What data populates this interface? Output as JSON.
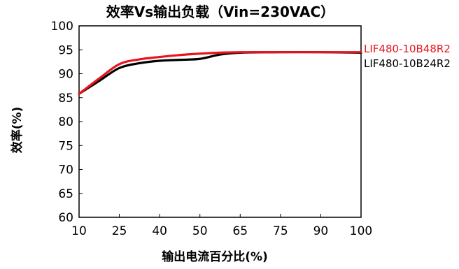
{
  "chart_data": {
    "type": "line",
    "title": "效率Vs输出负载（Vin=230VAC）",
    "xlabel": "输出电流百分比(%)",
    "ylabel": "效率(%)",
    "x_categories": [
      "10",
      "25",
      "40",
      "50",
      "65",
      "75",
      "90",
      "100"
    ],
    "y_ticks": [
      60,
      65,
      70,
      75,
      80,
      85,
      90,
      95,
      100
    ],
    "ylim": [
      60,
      100
    ],
    "grid": false,
    "legend_position": "right",
    "series": [
      {
        "name": "LIF480-10B48R2",
        "color": "#e8141b",
        "points": [
          [
            0,
            85.8
          ],
          [
            0.5,
            89.0
          ],
          [
            1,
            92.0
          ],
          [
            1.5,
            93.0
          ],
          [
            2,
            93.5
          ],
          [
            2.5,
            93.9
          ],
          [
            3,
            94.2
          ],
          [
            3.5,
            94.4
          ],
          [
            4,
            94.5
          ],
          [
            5,
            94.5
          ],
          [
            6,
            94.5
          ],
          [
            7,
            94.5
          ]
        ]
      },
      {
        "name": "LIF480-10B24R2",
        "color": "#000000",
        "points": [
          [
            0,
            85.8
          ],
          [
            0.5,
            88.5
          ],
          [
            1,
            91.2
          ],
          [
            1.5,
            92.2
          ],
          [
            2,
            92.7
          ],
          [
            2.5,
            92.9
          ],
          [
            3,
            93.1
          ],
          [
            3.5,
            94.0
          ],
          [
            4,
            94.4
          ],
          [
            5,
            94.5
          ],
          [
            6,
            94.5
          ],
          [
            7,
            94.4
          ]
        ]
      }
    ]
  }
}
